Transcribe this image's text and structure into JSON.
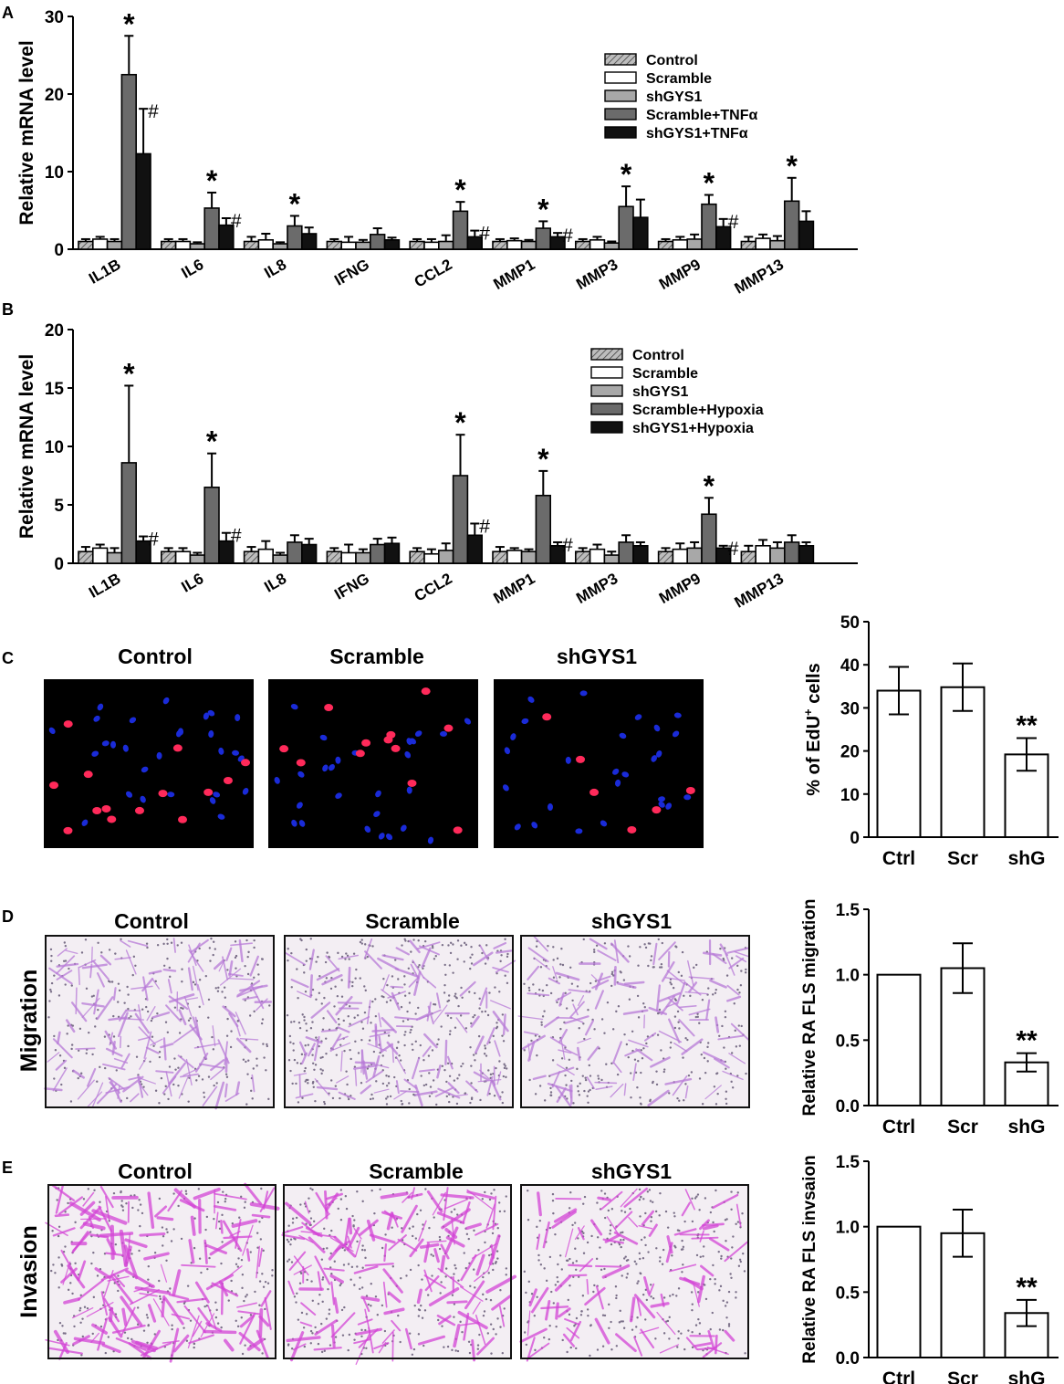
{
  "colors": {
    "shgys1": "#a8a8a8",
    "treat": "#6b6b6b",
    "black": "#111111",
    "white": "#ffffff"
  },
  "panels": {
    "A": {
      "letter": "A",
      "ylabel": "Relative mRNA level"
    },
    "B": {
      "letter": "B",
      "ylabel": "Relative mRNA level"
    },
    "C": {
      "letter": "C",
      "titles": [
        "Control",
        "Scramble",
        "shGYS1"
      ]
    },
    "D": {
      "letter": "D",
      "row_label": "Migration",
      "titles": [
        "Control",
        "Scramble",
        "shGYS1"
      ]
    },
    "E": {
      "letter": "E",
      "row_label": "Invasion",
      "titles": [
        "Control",
        "Scramble",
        "shGYS1"
      ]
    }
  },
  "chart_data": [
    {
      "id": "A",
      "type": "bar",
      "ylabel": "Relative mRNA level",
      "ylim": [
        0,
        30
      ],
      "yticks": [
        "0",
        "10",
        "20",
        "30"
      ],
      "legend_placement": "top-right",
      "categories": [
        "IL1B",
        "IL6",
        "IL8",
        "IFNG",
        "CCL2",
        "MMP1",
        "MMP3",
        "MMP9",
        "MMP13"
      ],
      "series": [
        {
          "name": "Control",
          "values": [
            1,
            1,
            1,
            1,
            1,
            1,
            1,
            1,
            1
          ],
          "errors": [
            0.3,
            0.3,
            0.6,
            0.3,
            0.3,
            0.3,
            0.3,
            0.3,
            0.6
          ]
        },
        {
          "name": "Scramble",
          "values": [
            1.3,
            1,
            1.2,
            0.9,
            0.9,
            1.1,
            1.2,
            1.2,
            1.4
          ],
          "errors": [
            0.3,
            0.3,
            0.8,
            0.7,
            0.4,
            0.3,
            0.4,
            0.4,
            0.5
          ]
        },
        {
          "name": "shGYS1",
          "values": [
            1,
            0.7,
            0.7,
            0.9,
            1,
            1,
            0.8,
            1.3,
            1.1
          ],
          "errors": [
            0.3,
            0.2,
            0.2,
            0.3,
            0.8,
            0.2,
            0.2,
            0.6,
            0.6
          ]
        },
        {
          "name": "Scramble+TNFα",
          "values": [
            22.5,
            5.3,
            3,
            1.9,
            4.9,
            2.7,
            5.5,
            5.8,
            6.2
          ],
          "errors": [
            5,
            2,
            1.3,
            0.8,
            1.2,
            0.9,
            2.6,
            1.2,
            3
          ],
          "annotations": [
            "*",
            "*",
            "*",
            "",
            "*",
            "*",
            "*",
            "*",
            "*"
          ]
        },
        {
          "name": "shGYS1+TNFα",
          "values": [
            12.3,
            3.1,
            2,
            1.2,
            1.6,
            1.6,
            4.1,
            2.9,
            3.6
          ],
          "errors": [
            5.8,
            0.9,
            0.8,
            0.3,
            0.8,
            0.5,
            2.3,
            1,
            1.3
          ],
          "annotations": [
            "#",
            "#",
            "",
            "",
            "#",
            "#",
            "",
            "#",
            ""
          ]
        }
      ]
    },
    {
      "id": "B",
      "type": "bar",
      "ylabel": "Relative mRNA level",
      "ylim": [
        0,
        20
      ],
      "yticks": [
        "0",
        "5",
        "10",
        "15",
        "20"
      ],
      "legend_placement": "top-right",
      "categories": [
        "IL1B",
        "IL6",
        "IL8",
        "IFNG",
        "CCL2",
        "MMP1",
        "MMP3",
        "MMP9",
        "MMP13"
      ],
      "series": [
        {
          "name": "Control",
          "values": [
            1,
            1,
            1,
            1,
            1,
            1,
            1,
            1,
            1
          ],
          "errors": [
            0.4,
            0.3,
            0.4,
            0.3,
            0.3,
            0.4,
            0.3,
            0.3,
            0.5
          ]
        },
        {
          "name": "Scramble",
          "values": [
            1.3,
            1,
            1.2,
            0.9,
            0.8,
            1.1,
            1.2,
            1.2,
            1.5
          ],
          "errors": [
            0.3,
            0.3,
            0.7,
            0.7,
            0.4,
            0.2,
            0.4,
            0.5,
            0.5
          ]
        },
        {
          "name": "shGYS1",
          "values": [
            0.9,
            0.7,
            0.7,
            0.9,
            1.1,
            1,
            0.7,
            1.3,
            1.3
          ],
          "errors": [
            0.4,
            0.2,
            0.2,
            0.3,
            0.6,
            0.2,
            0.3,
            0.5,
            0.5
          ]
        },
        {
          "name": "Scramble+Hypoxia",
          "values": [
            8.6,
            6.5,
            1.8,
            1.6,
            7.5,
            5.8,
            1.8,
            4.2,
            1.8
          ],
          "errors": [
            6.6,
            2.9,
            0.6,
            0.5,
            3.5,
            2.1,
            0.6,
            1.4,
            0.6
          ]
        },
        {
          "name": "shGYS1+Hypoxia",
          "values": [
            1.9,
            1.9,
            1.6,
            1.7,
            2.4,
            1.5,
            1.5,
            1.3,
            1.5
          ],
          "errors": [
            0.4,
            0.7,
            0.5,
            0.5,
            1,
            0.3,
            0.3,
            0.2,
            0.3
          ]
        }
      ],
      "annotations": {
        "Scramble+Hypoxia": [
          "*",
          "*",
          "",
          "",
          "*",
          "*",
          "",
          "*",
          ""
        ],
        "shGYS1+Hypoxia": [
          "#",
          "#",
          "",
          "",
          "#",
          "#",
          "",
          "#",
          ""
        ]
      }
    },
    {
      "id": "C_bar",
      "type": "bar",
      "ylabel": "% of EdU⁺ cells",
      "ylabel_main": "% of EdU",
      "ylabel_sup": "+",
      "ylabel_end": " cells",
      "ylim": [
        0,
        50
      ],
      "yticks": [
        "0",
        "10",
        "20",
        "30",
        "40",
        "50"
      ],
      "categories": [
        "Ctrl",
        "Scr",
        "shG"
      ],
      "values": [
        34,
        34.8,
        19.2
      ],
      "errors": [
        5.5,
        5.5,
        3.8
      ],
      "annotations": [
        "",
        "",
        "**"
      ]
    },
    {
      "id": "D_bar",
      "type": "bar",
      "ylabel": "Relative RA FLS migration",
      "ylim": [
        0,
        1.5
      ],
      "yticks": [
        "0.0",
        "0.5",
        "1.0",
        "1.5"
      ],
      "categories": [
        "Ctrl",
        "Scr",
        "shG"
      ],
      "values": [
        1.0,
        1.05,
        0.33
      ],
      "errors": [
        0,
        0.19,
        0.07
      ],
      "annotations": [
        "",
        "",
        "**"
      ]
    },
    {
      "id": "E_bar",
      "type": "bar",
      "ylabel": "Relative RA FLS invsaion",
      "ylim": [
        0,
        1.5
      ],
      "yticks": [
        "0.0",
        "0.5",
        "1.0",
        "1.5"
      ],
      "categories": [
        "Ctrl",
        "Scr",
        "shG"
      ],
      "values": [
        1.0,
        0.95,
        0.34
      ],
      "errors": [
        0,
        0.18,
        0.1
      ],
      "annotations": [
        "",
        "",
        "**"
      ]
    }
  ]
}
